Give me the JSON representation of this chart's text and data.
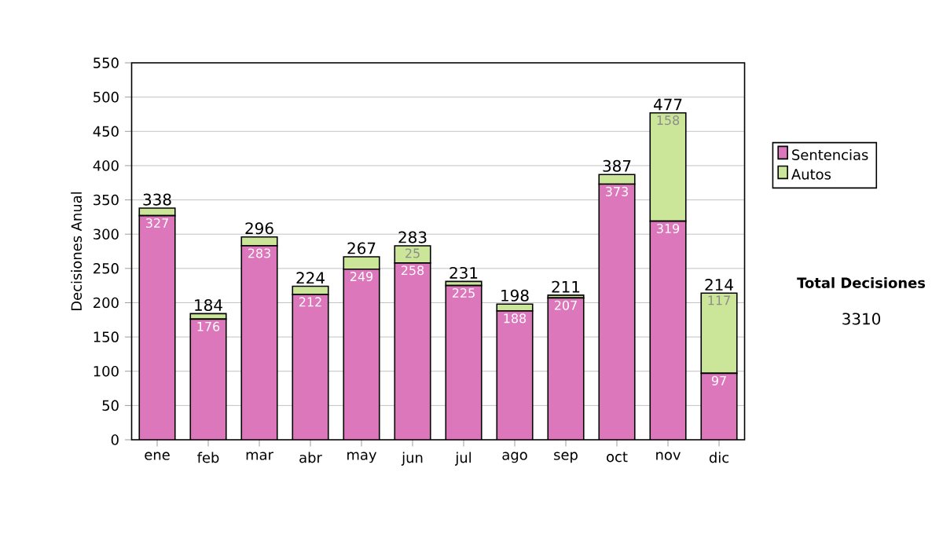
{
  "chart_data": {
    "type": "bar",
    "stacked": true,
    "ylabel": "Decisiones Anual",
    "categories": [
      "ene",
      "feb",
      "mar",
      "abr",
      "may",
      "jun",
      "jul",
      "ago",
      "sep",
      "oct",
      "nov",
      "dic"
    ],
    "series": [
      {
        "name": "Sentencias",
        "color": "#dd77bb",
        "values": [
          327,
          176,
          283,
          212,
          249,
          258,
          225,
          188,
          207,
          373,
          319,
          97
        ],
        "value_labels": [
          "327",
          "176",
          "283",
          "212",
          "249",
          "258",
          "225",
          "188",
          "207",
          "373",
          "319",
          "97"
        ]
      },
      {
        "name": "Autos",
        "color": "#cce699",
        "values": [
          11,
          8,
          13,
          12,
          18,
          25,
          6,
          10,
          4,
          14,
          158,
          117
        ],
        "value_labels": [
          null,
          null,
          null,
          null,
          null,
          "25",
          null,
          null,
          null,
          null,
          "158",
          "117"
        ]
      }
    ],
    "totals": [
      "338",
      "184",
      "296",
      "224",
      "267",
      "283",
      "231",
      "198",
      "211",
      "387",
      "477",
      "214"
    ],
    "ylim": [
      0,
      550
    ],
    "yticks": [
      0,
      50,
      100,
      150,
      200,
      250,
      300,
      350,
      400,
      450,
      500,
      550
    ],
    "grid": "y",
    "legend": "right",
    "annotations": [
      "Total Decisiones",
      "3310"
    ]
  }
}
